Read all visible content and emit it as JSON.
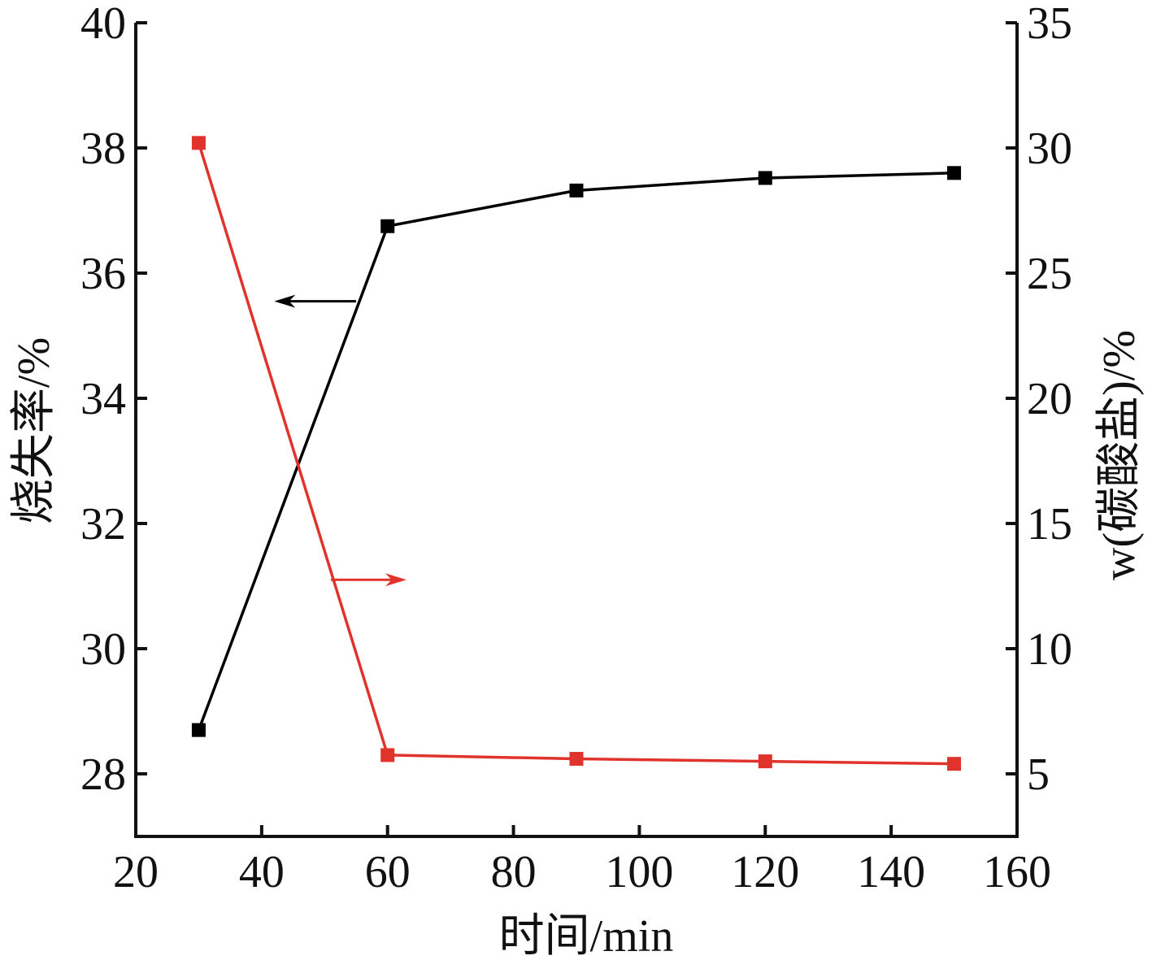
{
  "chart_data": {
    "type": "line",
    "xlabel": "时间/min",
    "ylabel_left": "烧失率/%",
    "ylabel_right": "w(碳酸盐)/%",
    "xlim": [
      20,
      160
    ],
    "ylim_left": [
      27,
      40
    ],
    "ylim_right": [
      2.5,
      35
    ],
    "xticks": [
      20,
      40,
      60,
      80,
      100,
      120,
      140,
      160
    ],
    "yticks_left": [
      28,
      30,
      32,
      34,
      36,
      38,
      40
    ],
    "yticks_right": [
      5,
      10,
      15,
      20,
      25,
      30,
      35
    ],
    "grid": false,
    "series": [
      {
        "axis": "left",
        "color": "#000000",
        "marker": "square",
        "x": [
          30,
          60,
          90,
          120,
          150
        ],
        "y": [
          28.7,
          36.75,
          37.32,
          37.52,
          37.6
        ]
      },
      {
        "axis": "right",
        "color": "#e0332c",
        "marker": "square",
        "x": [
          30,
          60,
          90,
          120,
          150
        ],
        "y": [
          30.2,
          5.75,
          5.6,
          5.5,
          5.4
        ]
      }
    ],
    "annotations": [
      {
        "kind": "arrow",
        "direction": "left",
        "points_to": "left-axis",
        "color": "#000000",
        "x": [
          55,
          42
        ],
        "y_left": 35.55
      },
      {
        "kind": "arrow",
        "direction": "right",
        "points_to": "right-axis",
        "color": "#e0332c",
        "x": [
          51,
          63
        ],
        "y_left": 31.1
      }
    ]
  }
}
